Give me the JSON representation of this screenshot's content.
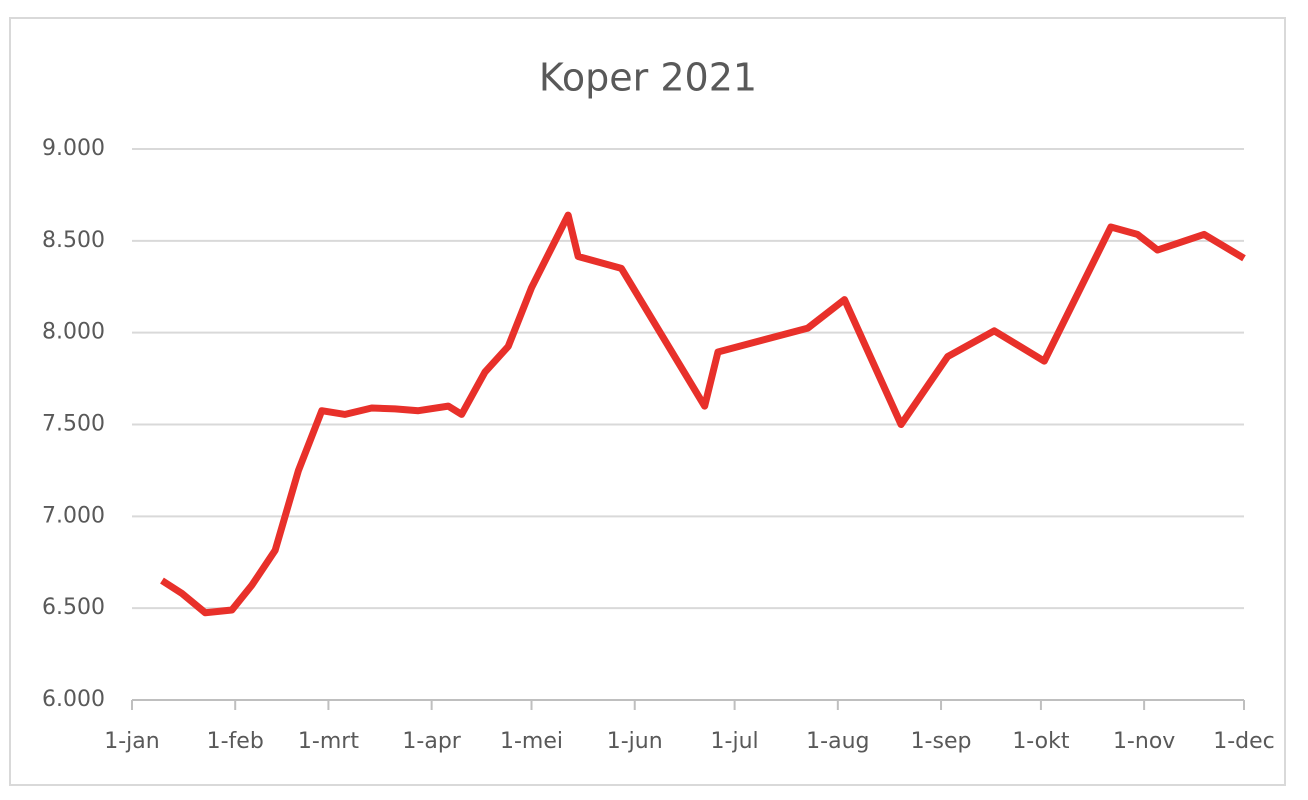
{
  "chart_data": {
    "type": "line",
    "title": "Koper 2021",
    "x": [
      9,
      15,
      22,
      30,
      36,
      43,
      50,
      57,
      64,
      72,
      79,
      86,
      95,
      99,
      106,
      113,
      120,
      131,
      134,
      147,
      172,
      176,
      203,
      214,
      231,
      245,
      259,
      274,
      294,
      302,
      308,
      322,
      334
    ],
    "series": [
      {
        "name": "Koper",
        "color": "#e8302a",
        "values": [
          6650,
          6580,
          6475,
          6490,
          6625,
          6815,
          7250,
          7575,
          7555,
          7590,
          7585,
          7575,
          7600,
          7555,
          7785,
          7925,
          8245,
          8640,
          8415,
          8350,
          7600,
          7895,
          8025,
          8180,
          7500,
          7870,
          8010,
          7845,
          8575,
          8535,
          8450,
          8535,
          8405
        ]
      }
    ],
    "xlim": [
      0,
      334
    ],
    "xticks": [
      {
        "value": 0,
        "label": "1-jan"
      },
      {
        "value": 31,
        "label": "1-feb"
      },
      {
        "value": 59,
        "label": "1-mrt"
      },
      {
        "value": 90,
        "label": "1-apr"
      },
      {
        "value": 120,
        "label": "1-mei"
      },
      {
        "value": 151,
        "label": "1-jun"
      },
      {
        "value": 181,
        "label": "1-jul"
      },
      {
        "value": 212,
        "label": "1-aug"
      },
      {
        "value": 243,
        "label": "1-sep"
      },
      {
        "value": 273,
        "label": "1-okt"
      },
      {
        "value": 304,
        "label": "1-nov"
      },
      {
        "value": 334,
        "label": "1-dec"
      }
    ],
    "ylim": [
      6000,
      9000
    ],
    "yticks": [
      {
        "value": 6000,
        "label": "6.000"
      },
      {
        "value": 6500,
        "label": "6.500"
      },
      {
        "value": 7000,
        "label": "7.000"
      },
      {
        "value": 7500,
        "label": "7.500"
      },
      {
        "value": 8000,
        "label": "8.000"
      },
      {
        "value": 8500,
        "label": "8.500"
      },
      {
        "value": 9000,
        "label": "9.000"
      }
    ],
    "grid": true
  }
}
